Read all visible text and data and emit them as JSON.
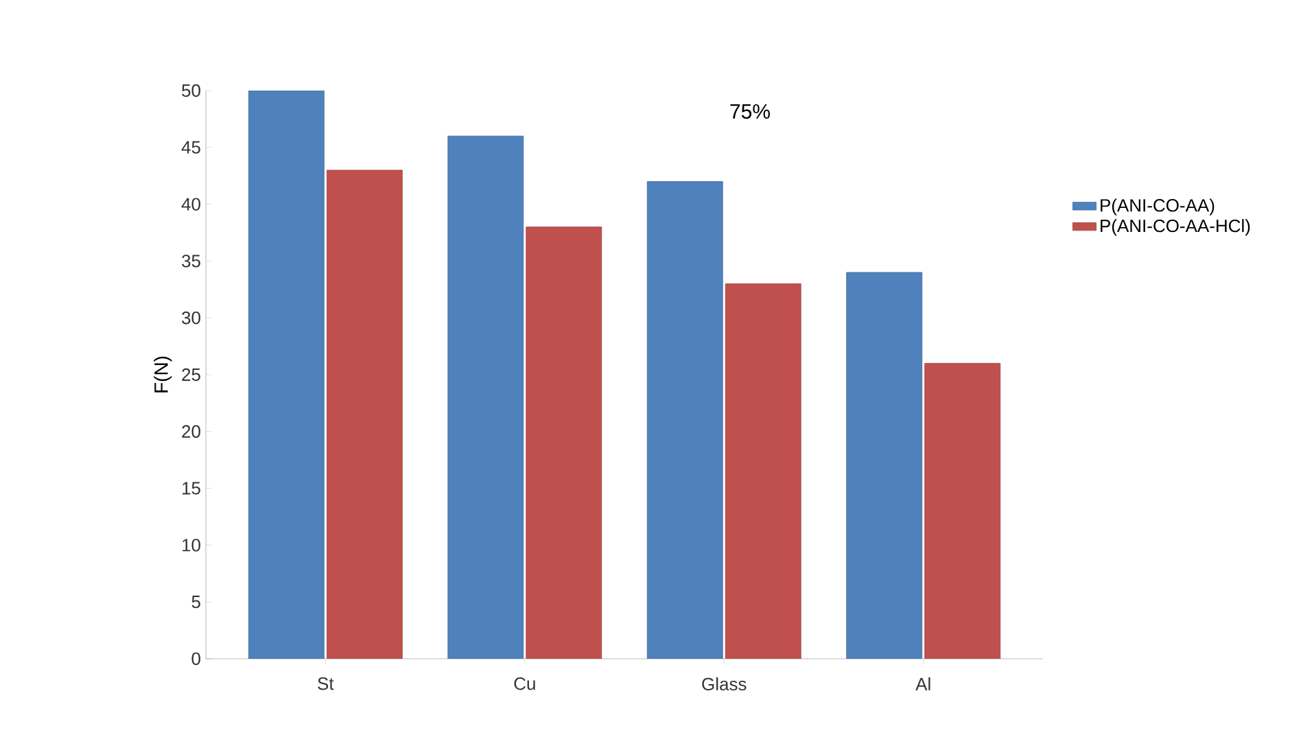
{
  "chart_data": {
    "type": "bar",
    "title": "75%",
    "ylabel": "F(N)",
    "categories": [
      "St",
      "Cu",
      "Glass",
      "Al"
    ],
    "series": [
      {
        "name": "P(ANI-CO-AA)",
        "color": "#4f81bd",
        "values": [
          50,
          46,
          42,
          34
        ]
      },
      {
        "name": "P(ANI-CO-AA-HCl)",
        "color": "#c0504d",
        "values": [
          43,
          38,
          33,
          26
        ]
      }
    ],
    "ylim": [
      0,
      50
    ],
    "yticks": [
      0,
      5,
      10,
      15,
      20,
      25,
      30,
      35,
      40,
      45,
      50
    ],
    "legend": "right"
  }
}
